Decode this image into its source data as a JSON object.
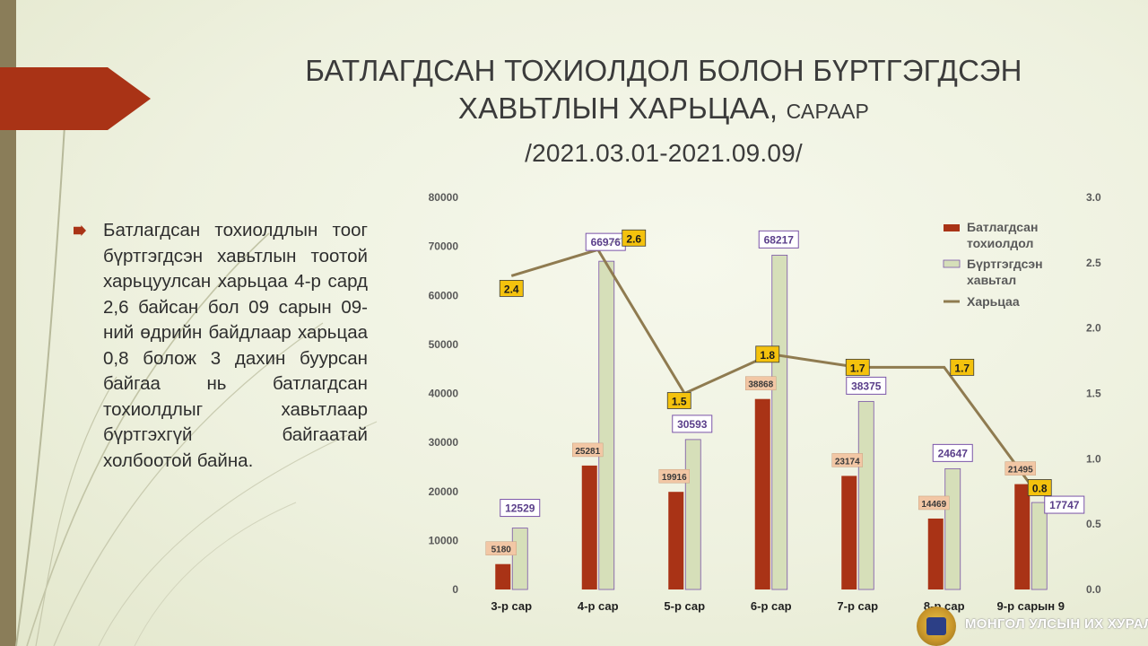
{
  "slide": {
    "title_line1": "БАТЛАГДСАН ТОХИОЛДОЛ БОЛОН БҮРТГЭГДСЭН",
    "title_line2_main": "ХАВЬТЛЫН ХАРЬЦАА, ",
    "title_line2_small": "САРААР",
    "title_line3": "/2021.03.01-2021.09.09/",
    "bullet": "Батлагдсан тохиолдлын тоог бүртгэгдсэн хавьтлын тоотой харьцуулсан харьцаа 4-р сард 2,6 байсан бол 09 сарын 09-ний өдрийн байдлаар харьцаа 0,8 болож 3 дахин буурсан байгаа нь батлагдсан тохиолдлыг хавьтлаар бүртгэхгүй байгаатай холбоотой байна.",
    "footer_text": "МОНГОЛ УЛСЫН ИХ ХУРАЛ"
  },
  "colors": {
    "accent_red": "#a93316",
    "side_strip": "#8a7d59",
    "bar_confirmed": "#a93316",
    "bar_contacts": "#d6dfb9",
    "contact_outline": "#7a54a8",
    "ratio_line": "#8f7b50",
    "ratio_label_fill": "#f4c20d",
    "confirmed_label_fill": "#f2c7a5"
  },
  "chart_data": {
    "type": "bar",
    "categories": [
      "3-р сар",
      "4-р сар",
      "5-р сар",
      "6-р сар",
      "7-р сар",
      "8-р сар",
      "9-р сарын 9"
    ],
    "series": [
      {
        "name": "Батлагдсан тохиолдол",
        "type": "bar",
        "axis": "left",
        "values": [
          5180,
          25281,
          19916,
          38868,
          23174,
          14469,
          21495
        ]
      },
      {
        "name": "Бүртгэгдсэн хавьтал",
        "type": "bar",
        "axis": "left",
        "values": [
          12529,
          66976,
          30593,
          68217,
          38375,
          24647,
          17747
        ]
      },
      {
        "name": "Харьцаа",
        "type": "line",
        "axis": "right",
        "values": [
          2.4,
          2.6,
          1.5,
          1.8,
          1.7,
          1.7,
          0.8
        ]
      }
    ],
    "legend_entries": [
      [
        "Батлагдсан",
        "тохиолдол"
      ],
      [
        "Бүртгэгдсэн",
        "хавьтал"
      ],
      [
        "Харьцаа"
      ]
    ],
    "ratio_labels": [
      "2.4",
      "2.6",
      "1.5",
      "1.8",
      "1.7",
      "1.7",
      "0.8"
    ],
    "y_left": {
      "range": [
        0,
        80000
      ],
      "ticks": [
        "0",
        "10000",
        "20000",
        "30000",
        "40000",
        "50000",
        "60000",
        "70000",
        "80000"
      ]
    },
    "y_right": {
      "range": [
        0,
        3.0
      ],
      "ticks": [
        "0.0",
        "0.5",
        "1.0",
        "1.5",
        "2.0",
        "2.5",
        "3.0"
      ]
    },
    "grid": false,
    "legend_position": "top-right"
  }
}
